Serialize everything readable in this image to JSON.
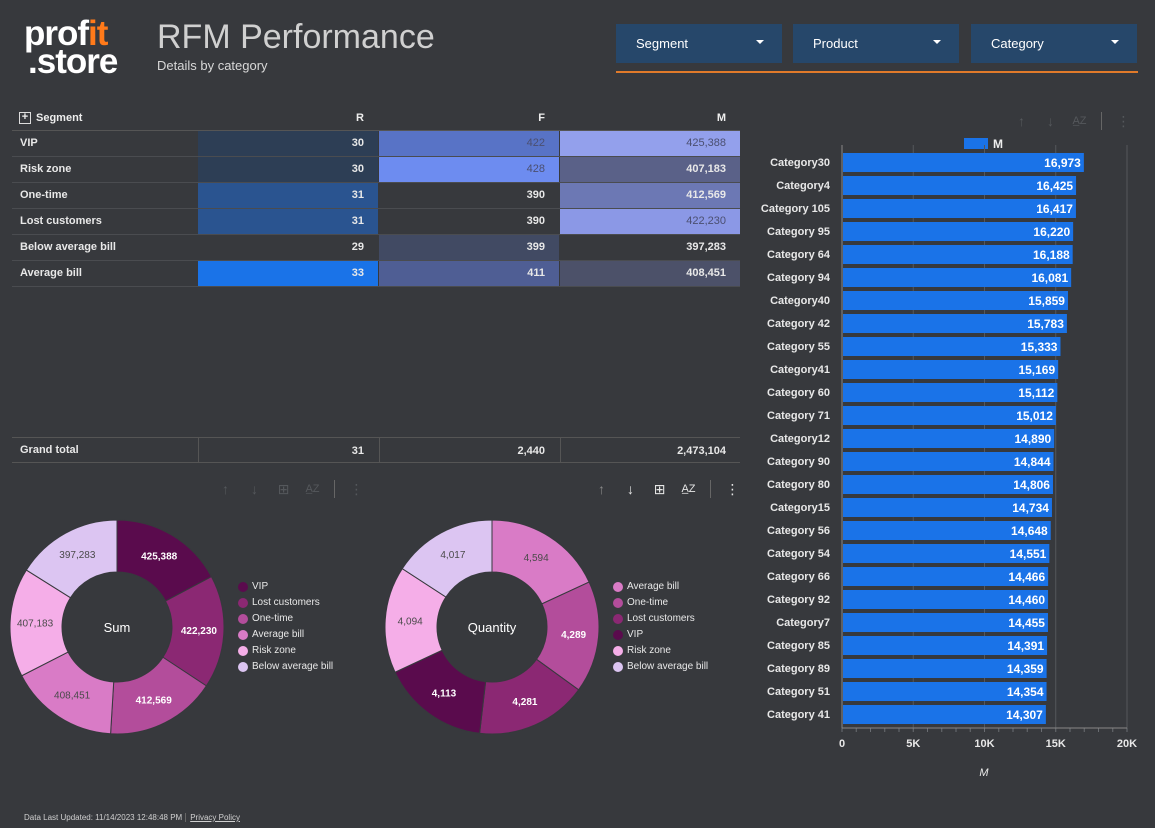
{
  "brand": {
    "line1a": "prof",
    "line1b": "it",
    "line2": ".store"
  },
  "header": {
    "title": "RFM Performance",
    "subtitle": "Details by category"
  },
  "filters": [
    {
      "label": "Segment"
    },
    {
      "label": "Product"
    },
    {
      "label": "Category"
    }
  ],
  "table": {
    "headers": {
      "segment": "Segment",
      "r": "R",
      "f": "F",
      "m": "M"
    },
    "rows": [
      {
        "segment": "VIP",
        "r": "30",
        "f": "422",
        "m": "425,388"
      },
      {
        "segment": "Risk zone",
        "r": "30",
        "f": "428",
        "m": "407,183"
      },
      {
        "segment": "One-time",
        "r": "31",
        "f": "390",
        "m": "412,569"
      },
      {
        "segment": "Lost customers",
        "r": "31",
        "f": "390",
        "m": "422,230"
      },
      {
        "segment": "Below average bill",
        "r": "29",
        "f": "399",
        "m": "397,283"
      },
      {
        "segment": "Average bill",
        "r": "33",
        "f": "411",
        "m": "408,451"
      }
    ],
    "grand_total": {
      "label": "Grand total",
      "r": "31",
      "f": "2,440",
      "m": "2,473,104"
    }
  },
  "colors": {
    "bar": "#1a73e8"
  },
  "chart_data": [
    {
      "type": "pie",
      "title": "Sum",
      "labels": [
        "VIP",
        "Lost customers",
        "One-time",
        "Average bill",
        "Risk zone",
        "Below average bill"
      ],
      "values": [
        425388,
        422230,
        412569,
        408451,
        407183,
        397283
      ],
      "value_labels": [
        "425,388",
        "422,230",
        "412,569",
        "408,451",
        "407,183",
        "397,283"
      ],
      "colors": [
        "#5a0b4d",
        "#8b2873",
        "#b34d9b",
        "#d97bc6",
        "#f5aee8",
        "#dcc5f2"
      ]
    },
    {
      "type": "pie",
      "title": "Quantity",
      "labels": [
        "Average bill",
        "One-time",
        "Lost customers",
        "VIP",
        "Risk zone",
        "Below average bill"
      ],
      "values": [
        4594,
        4289,
        4281,
        4113,
        4094,
        4017
      ],
      "value_labels": [
        "4,594",
        "4,289",
        "4,281",
        "4,113",
        "4,094",
        "4,017"
      ],
      "colors": [
        "#d97bc6",
        "#b34d9b",
        "#8b2873",
        "#5a0b4d",
        "#f5aee8",
        "#dcc5f2"
      ]
    },
    {
      "type": "bar",
      "orientation": "horizontal",
      "legend": "M",
      "categories": [
        "Category30",
        "Category4",
        "Category 105",
        "Category 95",
        "Category 64",
        "Category 94",
        "Category40",
        "Category 42",
        "Category 55",
        "Category41",
        "Category 60",
        "Category 71",
        "Category12",
        "Category 90",
        "Category 80",
        "Category15",
        "Category 56",
        "Category 54",
        "Category 66",
        "Category 92",
        "Category7",
        "Category 85",
        "Category 89",
        "Category 51",
        "Category 41"
      ],
      "values": [
        16973,
        16425,
        16417,
        16220,
        16188,
        16081,
        15859,
        15783,
        15333,
        15169,
        15112,
        15012,
        14890,
        14844,
        14806,
        14734,
        14648,
        14551,
        14466,
        14460,
        14455,
        14391,
        14359,
        14354,
        14307
      ],
      "value_labels": [
        "16,973",
        "16,425",
        "16,417",
        "16,220",
        "16,188",
        "16,081",
        "15,859",
        "15,783",
        "15,333",
        "15,169",
        "15,112",
        "15,012",
        "14,890",
        "14,844",
        "14,806",
        "14,734",
        "14,648",
        "14,551",
        "14,466",
        "14,460",
        "14,455",
        "14,391",
        "14,359",
        "14,354",
        "14,307"
      ],
      "xlim": [
        0,
        20000
      ],
      "x_ticks": [
        "0",
        "5K",
        "10K",
        "15K",
        "20K"
      ],
      "xlabel": "M"
    }
  ],
  "footer": {
    "updated": "Data Last Updated: 11/14/2023 12:48:48 PM",
    "privacy": "Privacy Policy"
  }
}
